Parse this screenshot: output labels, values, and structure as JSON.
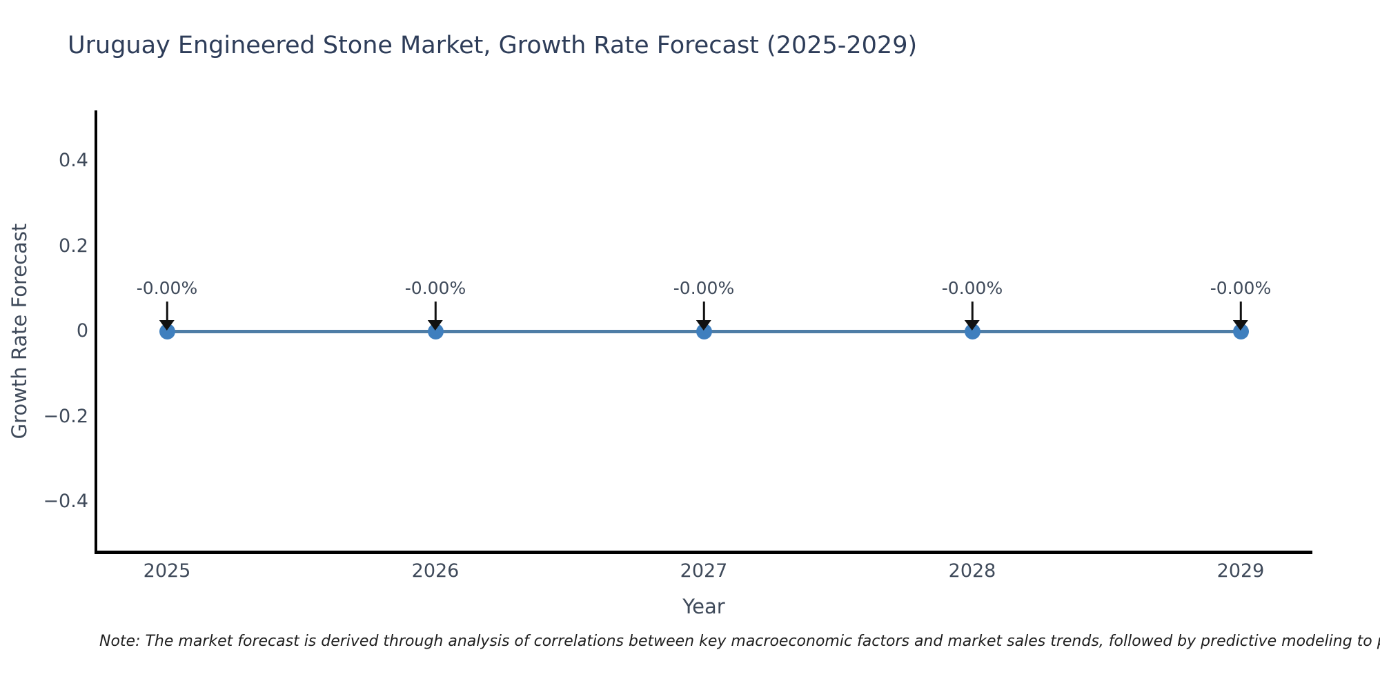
{
  "chart_data": {
    "type": "line",
    "title": "Uruguay Engineered Stone Market, Growth Rate Forecast (2025-2029)",
    "xlabel": "Year",
    "ylabel": "Growth Rate Forecast",
    "x": [
      2025,
      2026,
      2027,
      2028,
      2029
    ],
    "values": [
      0,
      0,
      0,
      0,
      0
    ],
    "point_labels": [
      "-0.00%",
      "-0.00%",
      "-0.00%",
      "-0.00%",
      "-0.00%"
    ],
    "xticks": [
      "2025",
      "2026",
      "2027",
      "2028",
      "2029"
    ],
    "yticks": [
      {
        "value": 0.4,
        "label": "0.4"
      },
      {
        "value": 0.2,
        "label": "0.2"
      },
      {
        "value": 0,
        "label": "0"
      },
      {
        "value": -0.2,
        "label": "−0.2"
      },
      {
        "value": -0.4,
        "label": "−0.4"
      }
    ],
    "ylim": [
      -0.52,
      0.52
    ],
    "grid": false,
    "legend": "none",
    "line_color": "#4e7da6",
    "marker_color": "#3f7fbe",
    "arrow_color": "#111111",
    "axis_color": "#000000",
    "title_color": "#2e3d59",
    "tick_color": "#3f4a5a"
  },
  "note": {
    "text": "Note: The market forecast is derived through analysis of correlations between key macroeconomic factors and market sales trends, followed by predictive modeling to project future sal"
  }
}
